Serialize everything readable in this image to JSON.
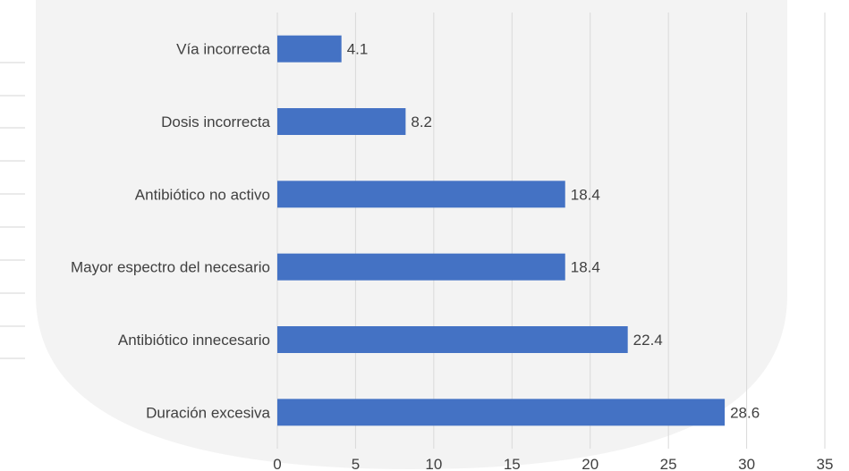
{
  "chart_data": {
    "type": "bar",
    "orientation": "horizontal",
    "categories": [
      "Vía incorrecta",
      "Dosis incorrecta",
      "Antibiótico no activo",
      "Mayor espectro del necesario",
      "Antibiótico innecesario",
      "Duración excesiva"
    ],
    "values": [
      4.1,
      8.2,
      18.4,
      18.4,
      22.4,
      28.6
    ],
    "data_labels": [
      "4.1",
      "8.2",
      "18.4",
      "18.4",
      "22.4",
      "28.6"
    ],
    "x_ticks": [
      "0",
      "5",
      "10",
      "15",
      "20",
      "25",
      "30",
      "35"
    ],
    "xlim": [
      0,
      35
    ],
    "grid": true,
    "bar_color": "#4472c4"
  }
}
